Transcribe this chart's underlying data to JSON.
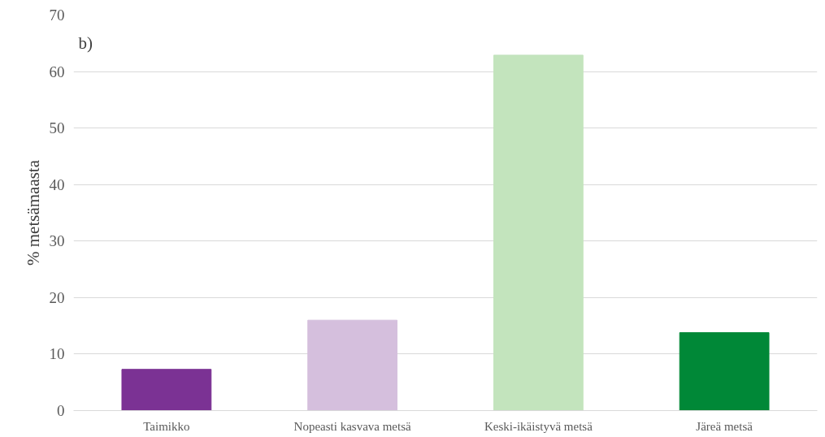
{
  "chart_data": {
    "type": "bar",
    "ylabel": "% metsämaasta",
    "annotations": [
      "b)"
    ],
    "categories": [
      "Taimikko",
      "Nopeasti kasvava metsä",
      "Keski-ikäistyvä metsä",
      "Järeä metsä"
    ],
    "values": [
      7.3,
      16.0,
      62.9,
      13.8
    ],
    "colors": [
      "#7b3294",
      "#d5bfdd",
      "#c3e4bd",
      "#008837"
    ],
    "ylim": [
      0,
      70
    ],
    "yticks": [
      0,
      10,
      20,
      30,
      40,
      50,
      60,
      70
    ],
    "grid": "y"
  }
}
